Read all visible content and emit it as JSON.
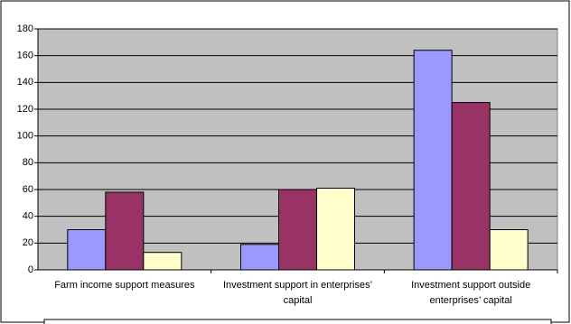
{
  "chart_data": {
    "type": "bar",
    "categories": [
      "Farm income support measures",
      "Investment support in enterprises’ capital",
      "Investment support outside enterprises’ capital"
    ],
    "series": [
      {
        "color": "#9999ff",
        "values": [
          30,
          19,
          164
        ]
      },
      {
        "color": "#993366",
        "values": [
          58,
          60,
          125
        ]
      },
      {
        "color": "#ffffcc",
        "values": [
          13,
          61,
          30
        ]
      }
    ],
    "ylim": [
      0,
      180
    ],
    "yticks": [
      0,
      20,
      40,
      60,
      80,
      100,
      120,
      140,
      160,
      180
    ],
    "grid": true,
    "plot_background": "#c0c0c0"
  }
}
